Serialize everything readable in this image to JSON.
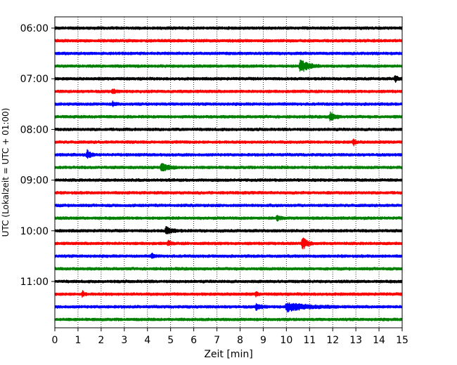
{
  "chart_data": {
    "type": "line",
    "title": "",
    "xlabel": "Zeit  [min]",
    "ylabel": "UTC (Lokalzeit = UTC + 01:00)",
    "xlim": [
      0,
      15
    ],
    "x_ticks": [
      "0",
      "1",
      "2",
      "3",
      "4",
      "5",
      "6",
      "7",
      "8",
      "9",
      "10",
      "11",
      "12",
      "13",
      "14",
      "15"
    ],
    "y_ticks": [
      "06:00",
      "07:00",
      "08:00",
      "09:00",
      "10:00",
      "11:00"
    ],
    "grid": "vertical dotted at each minute",
    "trace_interval_min": 15,
    "trace_colors": [
      "#000000",
      "#ff0000",
      "#0000ff",
      "#008000"
    ],
    "traces": [
      {
        "start": "06:00",
        "color": "#000000"
      },
      {
        "start": "06:15",
        "color": "#ff0000"
      },
      {
        "start": "06:30",
        "color": "#0000ff"
      },
      {
        "start": "06:45",
        "color": "#008000",
        "events": [
          {
            "t": 10.6,
            "amp": 9,
            "dur": 0.9
          }
        ]
      },
      {
        "start": "07:00",
        "color": "#000000",
        "events": [
          {
            "t": 14.7,
            "amp": 4,
            "dur": 0.3
          }
        ]
      },
      {
        "start": "07:15",
        "color": "#ff0000",
        "events": [
          {
            "t": 2.5,
            "amp": 3,
            "dur": 0.3
          }
        ]
      },
      {
        "start": "07:30",
        "color": "#0000ff",
        "events": [
          {
            "t": 2.5,
            "amp": 3,
            "dur": 0.3
          }
        ]
      },
      {
        "start": "07:45",
        "color": "#008000",
        "events": [
          {
            "t": 11.9,
            "amp": 6,
            "dur": 0.5
          }
        ]
      },
      {
        "start": "08:00",
        "color": "#000000"
      },
      {
        "start": "08:15",
        "color": "#ff0000",
        "events": [
          {
            "t": 12.9,
            "amp": 5,
            "dur": 0.2
          }
        ]
      },
      {
        "start": "08:30",
        "color": "#0000ff",
        "events": [
          {
            "t": 1.4,
            "amp": 6,
            "dur": 0.4
          }
        ]
      },
      {
        "start": "08:45",
        "color": "#008000",
        "events": [
          {
            "t": 4.6,
            "amp": 6,
            "dur": 0.8
          }
        ]
      },
      {
        "start": "09:00",
        "color": "#000000"
      },
      {
        "start": "09:15",
        "color": "#ff0000"
      },
      {
        "start": "09:30",
        "color": "#0000ff"
      },
      {
        "start": "09:45",
        "color": "#008000",
        "events": [
          {
            "t": 9.6,
            "amp": 3,
            "dur": 0.4
          }
        ]
      },
      {
        "start": "10:00",
        "color": "#000000",
        "events": [
          {
            "t": 4.8,
            "amp": 5,
            "dur": 0.7
          }
        ]
      },
      {
        "start": "10:15",
        "color": "#ff0000",
        "events": [
          {
            "t": 10.7,
            "amp": 9,
            "dur": 0.5
          },
          {
            "t": 4.9,
            "amp": 3,
            "dur": 0.3
          }
        ]
      },
      {
        "start": "10:30",
        "color": "#0000ff",
        "events": [
          {
            "t": 4.2,
            "amp": 3,
            "dur": 0.3
          }
        ]
      },
      {
        "start": "10:45",
        "color": "#008000"
      },
      {
        "start": "11:00",
        "color": "#000000"
      },
      {
        "start": "11:15",
        "color": "#ff0000",
        "events": [
          {
            "t": 1.2,
            "amp": 4,
            "dur": 0.2
          },
          {
            "t": 8.7,
            "amp": 3,
            "dur": 0.2
          }
        ]
      },
      {
        "start": "11:30",
        "color": "#0000ff",
        "events": [
          {
            "t": 10.0,
            "amp": 6,
            "dur": 2.2
          },
          {
            "t": 8.7,
            "amp": 4,
            "dur": 0.5
          }
        ]
      },
      {
        "start": "11:45",
        "color": "#008000"
      }
    ]
  }
}
